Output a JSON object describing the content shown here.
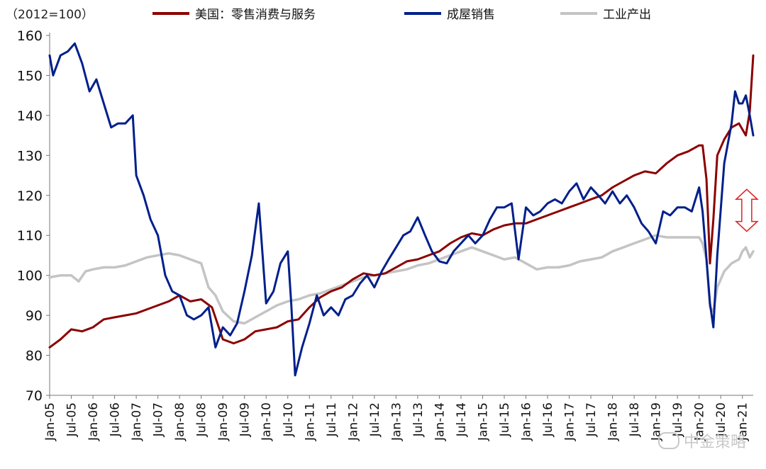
{
  "chart_data": {
    "type": "line",
    "unit_note": "（2012=100）",
    "ylim": [
      70,
      160
    ],
    "yticks": [
      70,
      80,
      90,
      100,
      110,
      120,
      130,
      140,
      150,
      160
    ],
    "xlim": [
      2005.0,
      2021.25
    ],
    "xticks": [
      {
        "x": 2005.0,
        "label": "Jan-05"
      },
      {
        "x": 2005.5,
        "label": "Jul-05"
      },
      {
        "x": 2006.0,
        "label": "Jan-06"
      },
      {
        "x": 2006.5,
        "label": "Jul-06"
      },
      {
        "x": 2007.0,
        "label": "Jan-07"
      },
      {
        "x": 2007.5,
        "label": "Jul-07"
      },
      {
        "x": 2008.0,
        "label": "Jan-08"
      },
      {
        "x": 2008.5,
        "label": "Jul-08"
      },
      {
        "x": 2009.0,
        "label": "Jan-09"
      },
      {
        "x": 2009.5,
        "label": "Jul-09"
      },
      {
        "x": 2010.0,
        "label": "Jan-10"
      },
      {
        "x": 2010.5,
        "label": "Jul-10"
      },
      {
        "x": 2011.0,
        "label": "Jan-11"
      },
      {
        "x": 2011.5,
        "label": "Jul-11"
      },
      {
        "x": 2012.0,
        "label": "Jan-12"
      },
      {
        "x": 2012.5,
        "label": "Jul-12"
      },
      {
        "x": 2013.0,
        "label": "Jan-13"
      },
      {
        "x": 2013.5,
        "label": "Jul-13"
      },
      {
        "x": 2014.0,
        "label": "Jan-14"
      },
      {
        "x": 2014.5,
        "label": "Jul-14"
      },
      {
        "x": 2015.0,
        "label": "Jan-15"
      },
      {
        "x": 2015.5,
        "label": "Jul-15"
      },
      {
        "x": 2016.0,
        "label": "Jan-16"
      },
      {
        "x": 2016.5,
        "label": "Jul-16"
      },
      {
        "x": 2017.0,
        "label": "Jan-17"
      },
      {
        "x": 2017.5,
        "label": "Jul-17"
      },
      {
        "x": 2018.0,
        "label": "Jan-18"
      },
      {
        "x": 2018.5,
        "label": "Jul-18"
      },
      {
        "x": 2019.0,
        "label": "Jan-19"
      },
      {
        "x": 2019.5,
        "label": "Jul-19"
      },
      {
        "x": 2020.0,
        "label": "Jan-20"
      },
      {
        "x": 2020.5,
        "label": "Jul-20"
      },
      {
        "x": 2021.0,
        "label": "Jan-21"
      }
    ],
    "series": [
      {
        "name": "美国：零售消费与服务",
        "color": "#8b0000",
        "points": [
          [
            2005.0,
            82
          ],
          [
            2005.25,
            84
          ],
          [
            2005.5,
            86.5
          ],
          [
            2005.75,
            86
          ],
          [
            2006.0,
            87
          ],
          [
            2006.25,
            89
          ],
          [
            2006.5,
            89.5
          ],
          [
            2006.75,
            90
          ],
          [
            2007.0,
            90.5
          ],
          [
            2007.25,
            91.5
          ],
          [
            2007.5,
            92.5
          ],
          [
            2007.75,
            93.5
          ],
          [
            2008.0,
            95
          ],
          [
            2008.25,
            93.5
          ],
          [
            2008.5,
            94
          ],
          [
            2008.75,
            92
          ],
          [
            2009.0,
            84
          ],
          [
            2009.25,
            83
          ],
          [
            2009.5,
            84
          ],
          [
            2009.75,
            86
          ],
          [
            2010.0,
            86.5
          ],
          [
            2010.25,
            87
          ],
          [
            2010.5,
            88.5
          ],
          [
            2010.75,
            89
          ],
          [
            2011.0,
            92
          ],
          [
            2011.25,
            94.5
          ],
          [
            2011.5,
            96
          ],
          [
            2011.75,
            97
          ],
          [
            2012.0,
            99
          ],
          [
            2012.25,
            100.5
          ],
          [
            2012.5,
            100
          ],
          [
            2012.75,
            100.5
          ],
          [
            2013.0,
            102
          ],
          [
            2013.25,
            103.5
          ],
          [
            2013.5,
            104
          ],
          [
            2013.75,
            105
          ],
          [
            2014.0,
            106
          ],
          [
            2014.25,
            108
          ],
          [
            2014.5,
            109.5
          ],
          [
            2014.75,
            110.5
          ],
          [
            2015.0,
            110
          ],
          [
            2015.25,
            111.5
          ],
          [
            2015.5,
            112.5
          ],
          [
            2015.75,
            113
          ],
          [
            2016.0,
            113
          ],
          [
            2016.25,
            114
          ],
          [
            2016.5,
            115
          ],
          [
            2016.75,
            116
          ],
          [
            2017.0,
            117
          ],
          [
            2017.25,
            118
          ],
          [
            2017.5,
            119
          ],
          [
            2017.75,
            120
          ],
          [
            2018.0,
            122
          ],
          [
            2018.25,
            123.5
          ],
          [
            2018.5,
            125
          ],
          [
            2018.75,
            126
          ],
          [
            2019.0,
            125.5
          ],
          [
            2019.25,
            128
          ],
          [
            2019.5,
            130
          ],
          [
            2019.75,
            131
          ],
          [
            2020.0,
            132.5
          ],
          [
            2020.08,
            132.5
          ],
          [
            2020.17,
            124
          ],
          [
            2020.25,
            103
          ],
          [
            2020.33,
            114
          ],
          [
            2020.42,
            130
          ],
          [
            2020.58,
            134
          ],
          [
            2020.75,
            137
          ],
          [
            2020.92,
            138
          ],
          [
            2021.0,
            136.5
          ],
          [
            2021.08,
            135
          ],
          [
            2021.17,
            141
          ],
          [
            2021.25,
            155
          ]
        ]
      },
      {
        "name": "成屋销售",
        "color": "#001f8b",
        "points": [
          [
            2005.0,
            155
          ],
          [
            2005.08,
            150
          ],
          [
            2005.25,
            155
          ],
          [
            2005.42,
            156
          ],
          [
            2005.58,
            158
          ],
          [
            2005.75,
            153
          ],
          [
            2005.92,
            146
          ],
          [
            2006.08,
            149
          ],
          [
            2006.25,
            143
          ],
          [
            2006.42,
            137
          ],
          [
            2006.58,
            138
          ],
          [
            2006.75,
            138
          ],
          [
            2006.92,
            140
          ],
          [
            2007.0,
            125
          ],
          [
            2007.17,
            120
          ],
          [
            2007.33,
            114
          ],
          [
            2007.5,
            110
          ],
          [
            2007.67,
            100
          ],
          [
            2007.83,
            96
          ],
          [
            2008.0,
            95
          ],
          [
            2008.17,
            90
          ],
          [
            2008.33,
            89
          ],
          [
            2008.5,
            90
          ],
          [
            2008.67,
            92
          ],
          [
            2008.83,
            82
          ],
          [
            2009.0,
            87
          ],
          [
            2009.17,
            85
          ],
          [
            2009.33,
            88
          ],
          [
            2009.5,
            96
          ],
          [
            2009.67,
            105
          ],
          [
            2009.83,
            118
          ],
          [
            2010.0,
            93
          ],
          [
            2010.17,
            96
          ],
          [
            2010.33,
            103
          ],
          [
            2010.5,
            106
          ],
          [
            2010.58,
            93
          ],
          [
            2010.67,
            75
          ],
          [
            2010.83,
            82
          ],
          [
            2011.0,
            88
          ],
          [
            2011.17,
            95
          ],
          [
            2011.33,
            90
          ],
          [
            2011.5,
            92
          ],
          [
            2011.67,
            90
          ],
          [
            2011.83,
            94
          ],
          [
            2012.0,
            95
          ],
          [
            2012.17,
            98
          ],
          [
            2012.33,
            100
          ],
          [
            2012.5,
            97
          ],
          [
            2012.67,
            101
          ],
          [
            2012.83,
            104
          ],
          [
            2013.0,
            107
          ],
          [
            2013.17,
            110
          ],
          [
            2013.33,
            111
          ],
          [
            2013.5,
            114.5
          ],
          [
            2013.67,
            110
          ],
          [
            2013.83,
            106
          ],
          [
            2014.0,
            103.5
          ],
          [
            2014.17,
            103
          ],
          [
            2014.33,
            106
          ],
          [
            2014.5,
            108
          ],
          [
            2014.67,
            110
          ],
          [
            2014.83,
            108
          ],
          [
            2015.0,
            110
          ],
          [
            2015.17,
            114
          ],
          [
            2015.33,
            117
          ],
          [
            2015.5,
            117
          ],
          [
            2015.67,
            118
          ],
          [
            2015.83,
            104
          ],
          [
            2016.0,
            117
          ],
          [
            2016.17,
            115
          ],
          [
            2016.33,
            116
          ],
          [
            2016.5,
            118
          ],
          [
            2016.67,
            119
          ],
          [
            2016.83,
            118
          ],
          [
            2017.0,
            121
          ],
          [
            2017.17,
            123
          ],
          [
            2017.33,
            119
          ],
          [
            2017.5,
            122
          ],
          [
            2017.67,
            120
          ],
          [
            2017.83,
            118
          ],
          [
            2018.0,
            121
          ],
          [
            2018.17,
            118
          ],
          [
            2018.33,
            120
          ],
          [
            2018.5,
            117
          ],
          [
            2018.67,
            113
          ],
          [
            2018.83,
            111
          ],
          [
            2019.0,
            108
          ],
          [
            2019.17,
            116
          ],
          [
            2019.33,
            115
          ],
          [
            2019.5,
            117
          ],
          [
            2019.67,
            117
          ],
          [
            2019.83,
            116
          ],
          [
            2020.0,
            122
          ],
          [
            2020.08,
            116
          ],
          [
            2020.17,
            104
          ],
          [
            2020.25,
            93
          ],
          [
            2020.33,
            87
          ],
          [
            2020.42,
            105
          ],
          [
            2020.58,
            128
          ],
          [
            2020.75,
            138
          ],
          [
            2020.83,
            146
          ],
          [
            2020.92,
            143
          ],
          [
            2021.0,
            143
          ],
          [
            2021.08,
            145
          ],
          [
            2021.17,
            140
          ],
          [
            2021.25,
            135
          ]
        ]
      },
      {
        "name": "工业产出",
        "color": "#c4c4c4",
        "points": [
          [
            2005.0,
            99.5
          ],
          [
            2005.25,
            100
          ],
          [
            2005.5,
            100
          ],
          [
            2005.67,
            98.5
          ],
          [
            2005.83,
            101
          ],
          [
            2006.0,
            101.5
          ],
          [
            2006.25,
            102
          ],
          [
            2006.5,
            102
          ],
          [
            2006.75,
            102.5
          ],
          [
            2007.0,
            103.5
          ],
          [
            2007.25,
            104.5
          ],
          [
            2007.5,
            105
          ],
          [
            2007.75,
            105.5
          ],
          [
            2008.0,
            105
          ],
          [
            2008.25,
            104
          ],
          [
            2008.5,
            103
          ],
          [
            2008.67,
            97
          ],
          [
            2008.83,
            95
          ],
          [
            2009.0,
            91
          ],
          [
            2009.25,
            88.5
          ],
          [
            2009.5,
            88
          ],
          [
            2009.75,
            89.5
          ],
          [
            2010.0,
            91
          ],
          [
            2010.25,
            92.5
          ],
          [
            2010.5,
            93.5
          ],
          [
            2010.75,
            94
          ],
          [
            2011.0,
            95
          ],
          [
            2011.25,
            95.5
          ],
          [
            2011.5,
            96.5
          ],
          [
            2011.75,
            97.5
          ],
          [
            2012.0,
            98.5
          ],
          [
            2012.25,
            99.5
          ],
          [
            2012.5,
            100
          ],
          [
            2012.75,
            100.5
          ],
          [
            2013.0,
            101
          ],
          [
            2013.25,
            101.5
          ],
          [
            2013.5,
            102.5
          ],
          [
            2013.75,
            103
          ],
          [
            2014.0,
            104
          ],
          [
            2014.25,
            105
          ],
          [
            2014.5,
            106
          ],
          [
            2014.75,
            107
          ],
          [
            2015.0,
            106
          ],
          [
            2015.25,
            105
          ],
          [
            2015.5,
            104
          ],
          [
            2015.75,
            104.5
          ],
          [
            2016.0,
            103
          ],
          [
            2016.25,
            101.5
          ],
          [
            2016.5,
            102
          ],
          [
            2016.75,
            102
          ],
          [
            2017.0,
            102.5
          ],
          [
            2017.25,
            103.5
          ],
          [
            2017.5,
            104
          ],
          [
            2017.75,
            104.5
          ],
          [
            2018.0,
            106
          ],
          [
            2018.25,
            107
          ],
          [
            2018.5,
            108
          ],
          [
            2018.75,
            109
          ],
          [
            2019.0,
            110
          ],
          [
            2019.25,
            109.5
          ],
          [
            2019.5,
            109.5
          ],
          [
            2019.75,
            109.5
          ],
          [
            2020.0,
            109.5
          ],
          [
            2020.08,
            108
          ],
          [
            2020.17,
            104
          ],
          [
            2020.25,
            92
          ],
          [
            2020.33,
            91
          ],
          [
            2020.42,
            97
          ],
          [
            2020.58,
            101
          ],
          [
            2020.75,
            103
          ],
          [
            2020.92,
            104
          ],
          [
            2021.0,
            106
          ],
          [
            2021.08,
            107
          ],
          [
            2021.17,
            104.5
          ],
          [
            2021.25,
            106
          ]
        ]
      }
    ],
    "annotation": {
      "type": "double-arrow",
      "color": "#e02020",
      "x": 2021.1,
      "from": 111,
      "to": 121.5
    },
    "grid": false,
    "legend_position": "top"
  },
  "watermark": "中金策略"
}
